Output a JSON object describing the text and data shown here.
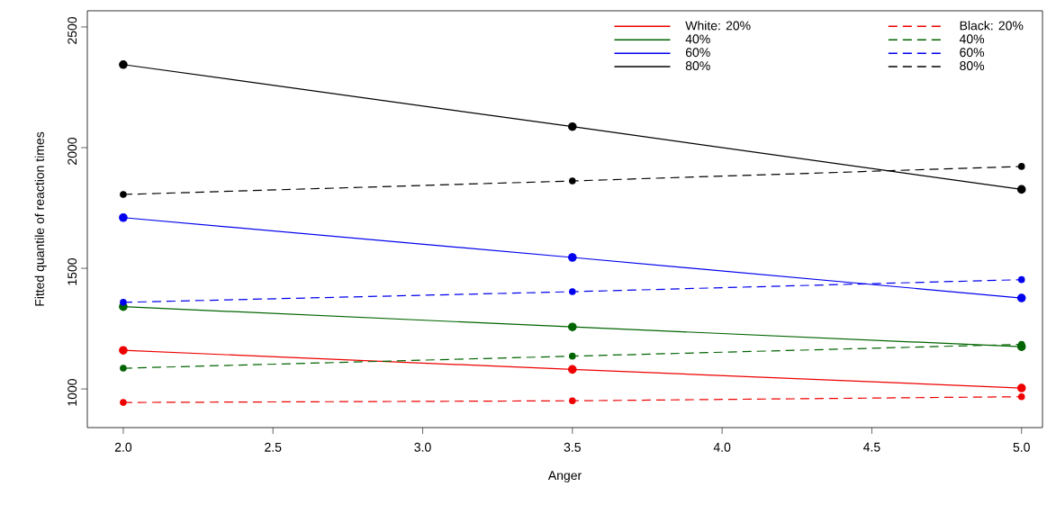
{
  "chart_data": {
    "type": "line",
    "xlabel": "Anger",
    "ylabel": "Fitted quantile of reaction times",
    "x": [
      2.0,
      3.5,
      5.0
    ],
    "xlim": [
      1.88,
      5.07
    ],
    "ylim": [
      840,
      2567
    ],
    "xticks": [
      {
        "value": 2.0,
        "label": "2.0"
      },
      {
        "value": 2.5,
        "label": "2.5"
      },
      {
        "value": 3.0,
        "label": "3.0"
      },
      {
        "value": 3.5,
        "label": "3.5"
      },
      {
        "value": 4.0,
        "label": "4.0"
      },
      {
        "value": 4.5,
        "label": "4.5"
      },
      {
        "value": 5.0,
        "label": "5.0"
      }
    ],
    "yticks": [
      1000,
      1500,
      2000,
      2500
    ],
    "grid": false,
    "legend": "top right",
    "marker": "circle",
    "series": [
      {
        "name": "White: 20%",
        "color": "#ee0000",
        "line_style": "solid",
        "values": [
          1160,
          1081,
          1004
        ]
      },
      {
        "name": "40%",
        "color": "#006400",
        "line_style": "solid",
        "values": [
          1341,
          1257,
          1175
        ]
      },
      {
        "name": "60%",
        "color": "#0000ee",
        "line_style": "solid",
        "values": [
          1710,
          1545,
          1377
        ]
      },
      {
        "name": "80%",
        "color": "#000000",
        "line_style": "solid",
        "values": [
          2344,
          2087,
          1827
        ]
      },
      {
        "name": "Black: 20%",
        "color": "#ee0000",
        "line_style": "dashed",
        "values": [
          944,
          951,
          968
        ]
      },
      {
        "name": "40%",
        "color": "#006400",
        "line_style": "dashed",
        "values": [
          1086,
          1136,
          1185
        ]
      },
      {
        "name": "60%",
        "color": "#0000ee",
        "line_style": "dashed",
        "values": [
          1359,
          1403,
          1453
        ]
      },
      {
        "name": "80%",
        "color": "#000000",
        "line_style": "dashed",
        "values": [
          1806,
          1862,
          1922
        ]
      }
    ]
  }
}
